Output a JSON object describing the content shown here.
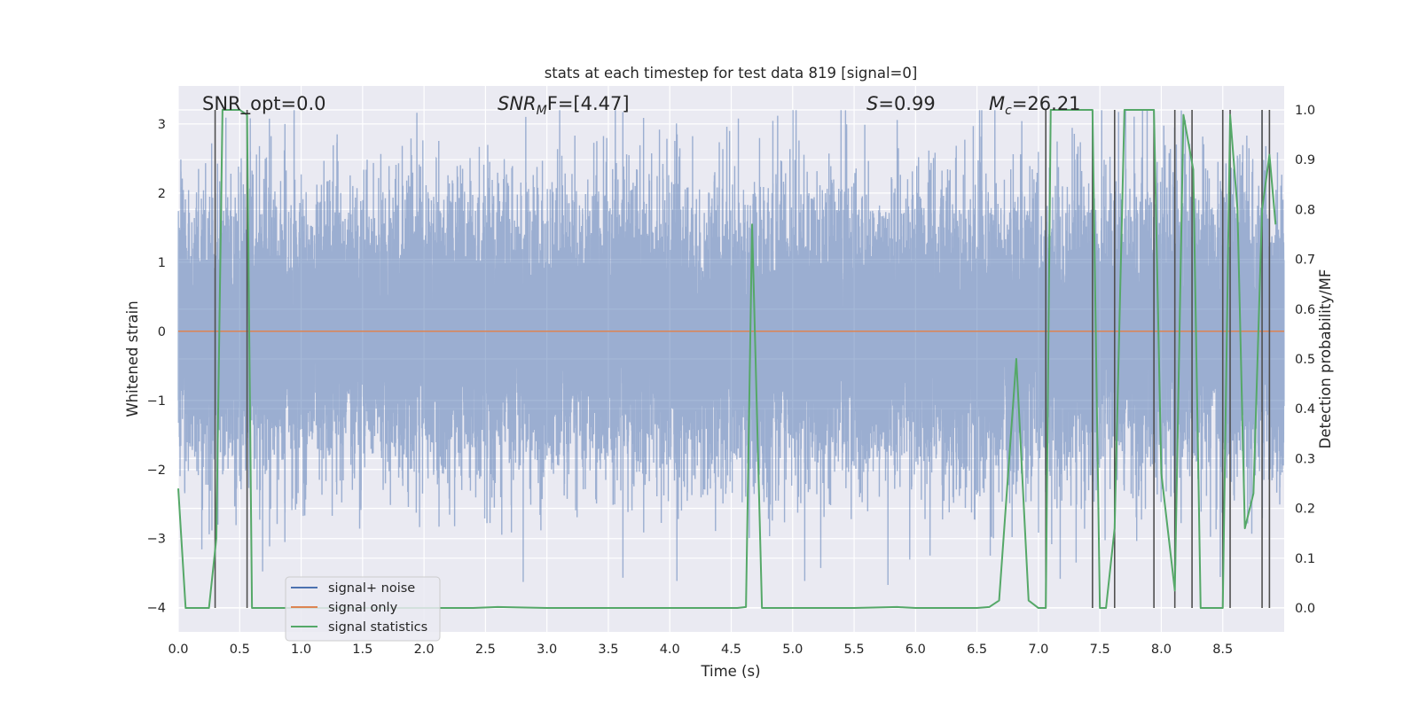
{
  "chart_data": {
    "type": "line",
    "title": "stats at each timestep for test data 819 [signal=0]",
    "xlabel": "Time (s)",
    "ylabel_left": "Whitened strain",
    "ylabel_right": "Detection probability/MF",
    "xlim": [
      0.0,
      9.0
    ],
    "ylim_left": [
      -4.35,
      3.55
    ],
    "ylim_right": [
      -0.048,
      1.048
    ],
    "x_ticks": [
      "0.0",
      "0.5",
      "1.0",
      "1.5",
      "2.0",
      "2.5",
      "3.0",
      "3.5",
      "4.0",
      "4.5",
      "5.0",
      "5.5",
      "6.0",
      "6.5",
      "7.0",
      "7.5",
      "8.0",
      "8.5"
    ],
    "x_tick_values": [
      0.0,
      0.5,
      1.0,
      1.5,
      2.0,
      2.5,
      3.0,
      3.5,
      4.0,
      4.5,
      5.0,
      5.5,
      6.0,
      6.5,
      7.0,
      7.5,
      8.0,
      8.5
    ],
    "y_left_ticks": [
      "−4",
      "−3",
      "−2",
      "−1",
      "0",
      "1",
      "2",
      "3"
    ],
    "y_left_tick_values": [
      -4,
      -3,
      -2,
      -1,
      0,
      1,
      2,
      3
    ],
    "y_right_ticks": [
      "0.0",
      "0.1",
      "0.2",
      "0.3",
      "0.4",
      "0.5",
      "0.6",
      "0.7",
      "0.8",
      "0.9",
      "1.0"
    ],
    "y_right_tick_values": [
      0.0,
      0.1,
      0.2,
      0.3,
      0.4,
      0.5,
      0.6,
      0.7,
      0.8,
      0.9,
      1.0
    ],
    "grid": true,
    "legend_position": "lower-left",
    "annotations": {
      "snr_opt": "SNR_opt=0.0",
      "snr_mf_symbol": "SNR",
      "snr_mf_sub": "M",
      "snr_mf_rest": "F=[4.47]",
      "s_symbol": "S",
      "s_rest": "=0.99",
      "mc_symbol": "M",
      "mc_sub": "c",
      "mc_rest": "=26.21"
    },
    "series": [
      {
        "name": "signal+ noise",
        "color": "#4c72b0",
        "axis": "left",
        "sample_rate_hz": 2048,
        "seed": 819,
        "sigma": 1.0
      },
      {
        "name": "signal only",
        "color": "#dd8452",
        "axis": "left",
        "x": [
          0.0,
          9.0
        ],
        "y": [
          0.0,
          0.0
        ]
      },
      {
        "name": "signal statistics",
        "color": "#55a868",
        "axis": "right",
        "x": [
          0.0,
          0.06,
          0.13,
          0.25,
          0.31,
          0.36,
          0.41,
          0.5,
          0.56,
          0.6,
          0.66,
          0.75,
          1.0,
          2.0,
          2.4,
          2.6,
          3.0,
          4.0,
          4.55,
          4.62,
          4.67,
          4.75,
          4.85,
          5.0,
          5.5,
          5.85,
          6.0,
          6.5,
          6.6,
          6.68,
          6.82,
          6.92,
          7.0,
          7.06,
          7.1,
          7.25,
          7.4,
          7.44,
          7.5,
          7.55,
          7.62,
          7.7,
          7.8,
          7.94,
          8.0,
          8.11,
          8.18,
          8.26,
          8.32,
          8.4,
          8.5,
          8.56,
          8.62,
          8.68,
          8.75,
          8.82,
          8.88,
          8.93
        ],
        "y": [
          0.24,
          0.0,
          0.0,
          0.0,
          0.14,
          1.0,
          1.0,
          1.0,
          0.99,
          0.0,
          0.0,
          0.0,
          0.0,
          0.0,
          0.0,
          0.002,
          0.0,
          0.0,
          0.0,
          0.002,
          0.77,
          0.0,
          0.0,
          0.0,
          0.0,
          0.002,
          0.0,
          0.0,
          0.002,
          0.015,
          0.5,
          0.015,
          0.0,
          0.0,
          1.0,
          1.0,
          1.0,
          1.0,
          0.0,
          0.0,
          0.16,
          1.0,
          1.0,
          1.0,
          0.27,
          0.035,
          0.99,
          0.88,
          0.0,
          0.0,
          0.0,
          0.99,
          0.8,
          0.16,
          0.23,
          0.8,
          0.91,
          0.77
        ]
      }
    ],
    "vertical_markers_x": [
      0.3,
      0.56,
      7.06,
      7.44,
      7.62,
      7.94,
      8.11,
      8.25,
      8.5,
      8.56,
      8.82,
      8.88
    ]
  }
}
